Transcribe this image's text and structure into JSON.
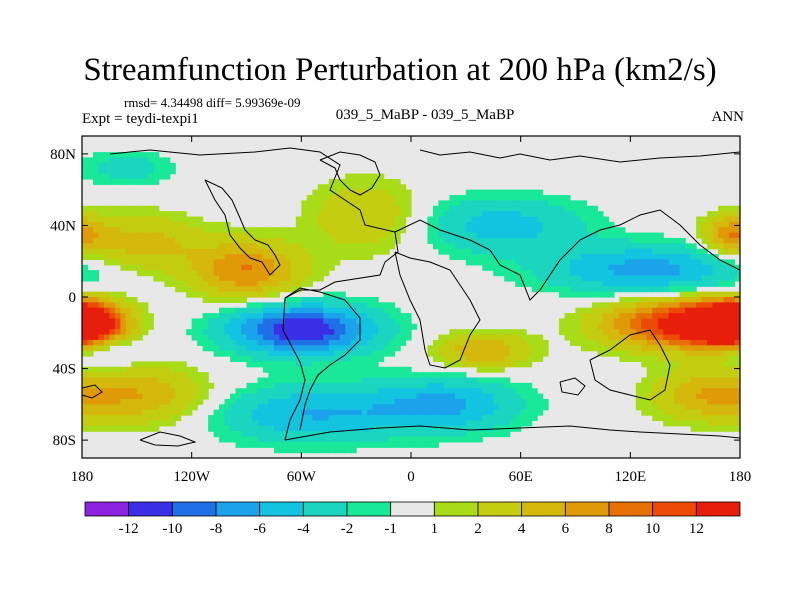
{
  "title": "Streamfunction Perturbation at 200 hPa (km2/s)",
  "stats": "rmsd= 4.34498  diff= 5.99369e-09",
  "experiment_label": "Expt = teydi-texpi1",
  "case_label": "039_5_MaBP - 039_5_MaBP",
  "season": "ANN",
  "colors": {
    "levels": [
      "#8a22e0",
      "#3a2ee6",
      "#1f6fe6",
      "#1aa3ea",
      "#13c4e0",
      "#1ad6c0",
      "#18e898",
      "#e8e8e8",
      "#a8dc18",
      "#c4cc10",
      "#d4b80c",
      "#e09a08",
      "#e67006",
      "#ec4a06",
      "#e81e0c"
    ]
  },
  "chart_data": {
    "type": "heatmap",
    "variable": "Streamfunction Perturbation",
    "level": "200 hPa",
    "units": "km2/s",
    "x_ticks": [
      "180",
      "120W",
      "60W",
      "0",
      "60E",
      "120E",
      "180"
    ],
    "x_tick_values": [
      -180,
      -120,
      -60,
      0,
      60,
      120,
      180
    ],
    "y_ticks": [
      "80N",
      "40N",
      "0",
      "40S",
      "80S"
    ],
    "y_tick_values": [
      80,
      40,
      0,
      -40,
      -80
    ],
    "xlim": [
      -180,
      180
    ],
    "ylim": [
      -90,
      90
    ],
    "colorbar_labels": [
      "-12",
      "-10",
      "-8",
      "-6",
      "-4",
      "-2",
      "-1",
      "1",
      "2",
      "4",
      "6",
      "8",
      "10",
      "12"
    ],
    "contour_levels": [
      -12,
      -10,
      -8,
      -6,
      -4,
      -2,
      -1,
      1,
      2,
      4,
      6,
      8,
      10,
      12
    ],
    "features": [
      {
        "lon": -60,
        "lat": -18,
        "value": -12,
        "dlon": 40,
        "dlat": 14
      },
      {
        "lon": -55,
        "lat": -65,
        "value": -6,
        "dlon": 55,
        "dlat": 16
      },
      {
        "lon": 20,
        "lat": -60,
        "value": -6,
        "dlon": 40,
        "dlat": 15
      },
      {
        "lon": 130,
        "lat": 15,
        "value": -7,
        "dlon": 55,
        "dlat": 14
      },
      {
        "lon": 50,
        "lat": 40,
        "value": -5,
        "dlon": 45,
        "dlat": 16
      },
      {
        "lon": -155,
        "lat": 72,
        "value": -3,
        "dlon": 25,
        "dlat": 10
      },
      {
        "lon": -170,
        "lat": -30,
        "value": -4,
        "dlon": 20,
        "dlat": 10
      },
      {
        "lon": 175,
        "lat": -15,
        "value": 12,
        "dlon": 25,
        "dlat": 12
      },
      {
        "lon": 145,
        "lat": -15,
        "value": 12,
        "dlon": 40,
        "dlat": 14
      },
      {
        "lon": -180,
        "lat": -15,
        "value": 11,
        "dlon": 20,
        "dlat": 12
      },
      {
        "lon": -90,
        "lat": 15,
        "value": 8,
        "dlon": 30,
        "dlat": 16
      },
      {
        "lon": -150,
        "lat": 30,
        "value": 5,
        "dlon": 35,
        "dlat": 16
      },
      {
        "lon": -25,
        "lat": 45,
        "value": 4,
        "dlon": 30,
        "dlat": 20
      },
      {
        "lon": -150,
        "lat": -55,
        "value": 6,
        "dlon": 40,
        "dlat": 16
      },
      {
        "lon": 40,
        "lat": -30,
        "value": 6,
        "dlon": 25,
        "dlat": 10
      },
      {
        "lon": 160,
        "lat": -55,
        "value": 5,
        "dlon": 30,
        "dlat": 14
      },
      {
        "lon": 175,
        "lat": 35,
        "value": 7,
        "dlon": 15,
        "dlat": 10
      }
    ]
  }
}
